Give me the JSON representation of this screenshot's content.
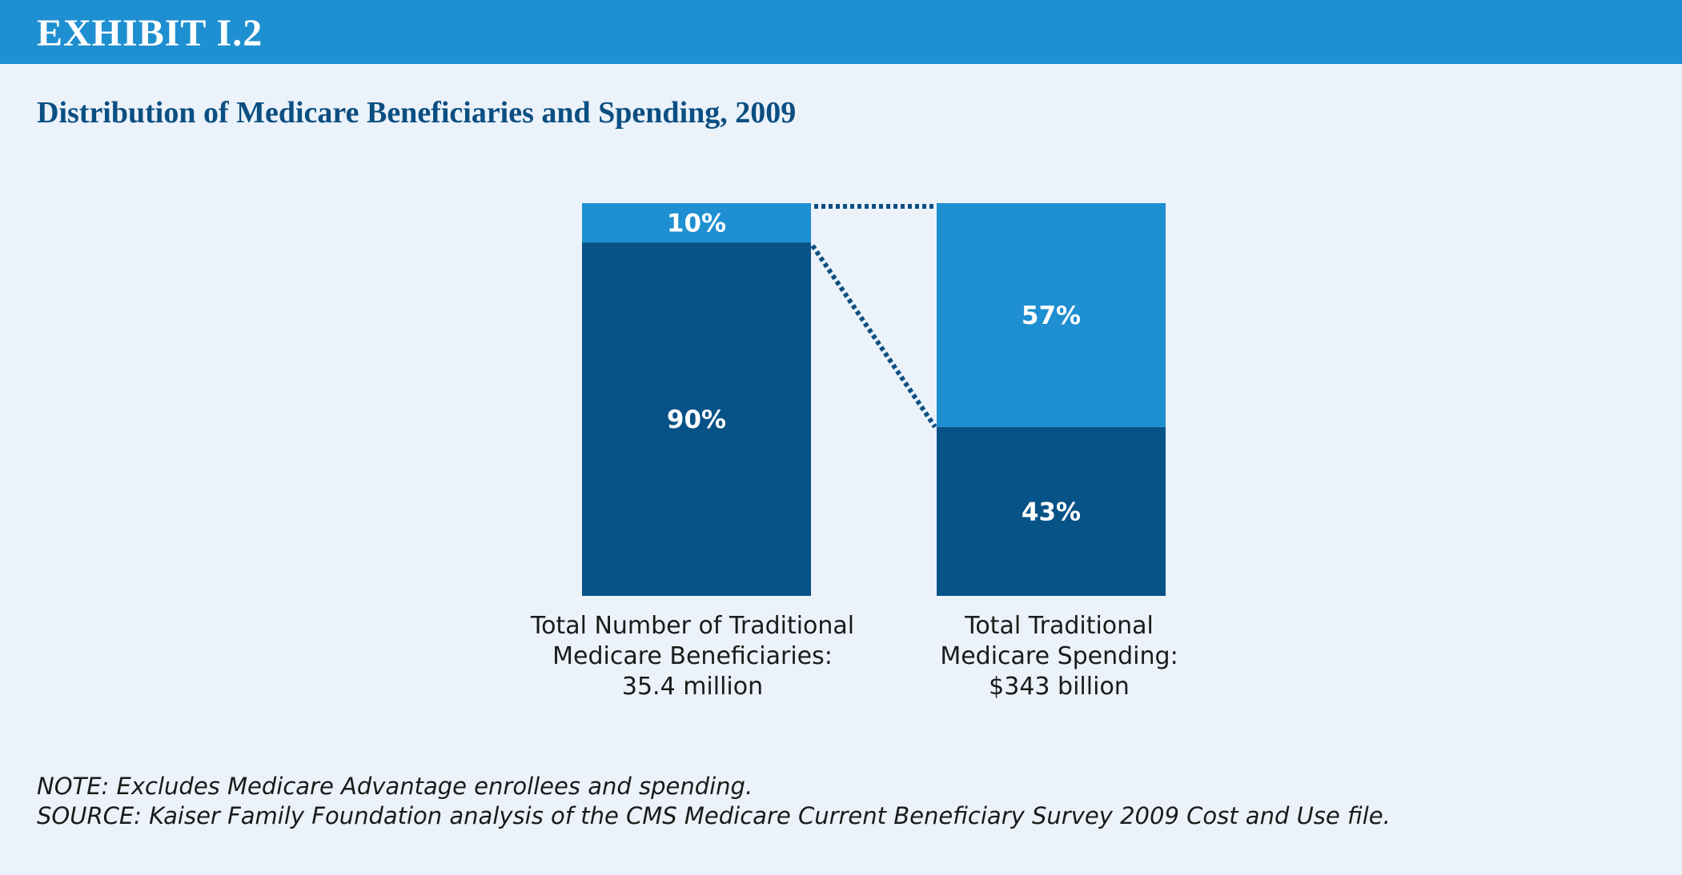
{
  "header": {
    "exhibit_label": "EXHIBIT I.2"
  },
  "colors": {
    "header_bar": "#1e8fd0",
    "background": "#ebf2fa",
    "dark_segment": "#075287",
    "light_segment": "#1e8fd0",
    "title": "#0b4f82",
    "connector": "#0b4f82"
  },
  "chart_data": {
    "type": "bar",
    "stacked": true,
    "title": "Distribution of Medicare Beneficiaries and Spending, 2009",
    "categories": [
      [
        "Total Number of Traditional",
        "Medicare Beneficiaries:",
        "35.4 million"
      ],
      [
        "Total Traditional",
        "Medicare Spending:",
        "$343 billion"
      ]
    ],
    "series": [
      {
        "values": [
          90,
          43
        ],
        "labels": [
          "90%",
          "43%"
        ],
        "color": "#075287"
      },
      {
        "values": [
          10,
          57
        ],
        "labels": [
          "10%",
          "57%"
        ],
        "color": "#1e8fd0"
      }
    ],
    "ylim": [
      0,
      100
    ],
    "connectors": "dotted lines linking the 10% segment of the left bar to the 57% segment of the right bar",
    "grid": false,
    "legend": "none"
  },
  "notes": {
    "note": "NOTE:  Excludes Medicare Advantage enrollees and spending.",
    "source": "SOURCE:  Kaiser Family Foundation analysis of the CMS Medicare Current Beneficiary Survey 2009 Cost and Use file."
  }
}
